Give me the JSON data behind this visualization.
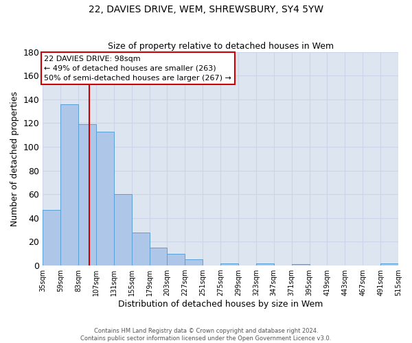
{
  "title": "22, DAVIES DRIVE, WEM, SHREWSBURY, SY4 5YW",
  "subtitle": "Size of property relative to detached houses in Wem",
  "xlabel": "Distribution of detached houses by size in Wem",
  "ylabel": "Number of detached properties",
  "bin_edges": [
    35,
    59,
    83,
    107,
    131,
    155,
    179,
    203,
    227,
    251,
    275,
    299,
    323,
    347,
    371,
    395,
    419,
    443,
    467,
    491,
    515
  ],
  "bar_heights": [
    47,
    136,
    119,
    113,
    60,
    28,
    15,
    10,
    5,
    0,
    2,
    0,
    2,
    0,
    1,
    0,
    0,
    0,
    0,
    2
  ],
  "bar_color": "#aec6e8",
  "bar_edgecolor": "#5a9fd4",
  "vline_x": 98,
  "vline_color": "#cc0000",
  "annotation_title": "22 DAVIES DRIVE: 98sqm",
  "annotation_line1": "← 49% of detached houses are smaller (263)",
  "annotation_line2": "50% of semi-detached houses are larger (267) →",
  "annotation_box_edgecolor": "#cc0000",
  "annotation_box_facecolor": "#ffffff",
  "ylim": [
    0,
    180
  ],
  "yticks": [
    0,
    20,
    40,
    60,
    80,
    100,
    120,
    140,
    160,
    180
  ],
  "xtick_labels": [
    "35sqm",
    "59sqm",
    "83sqm",
    "107sqm",
    "131sqm",
    "155sqm",
    "179sqm",
    "203sqm",
    "227sqm",
    "251sqm",
    "275sqm",
    "299sqm",
    "323sqm",
    "347sqm",
    "371sqm",
    "395sqm",
    "419sqm",
    "443sqm",
    "467sqm",
    "491sqm",
    "515sqm"
  ],
  "grid_color": "#ccd5e8",
  "background_color": "#dde5f0",
  "footer_line1": "Contains HM Land Registry data © Crown copyright and database right 2024.",
  "footer_line2": "Contains public sector information licensed under the Open Government Licence v3.0."
}
